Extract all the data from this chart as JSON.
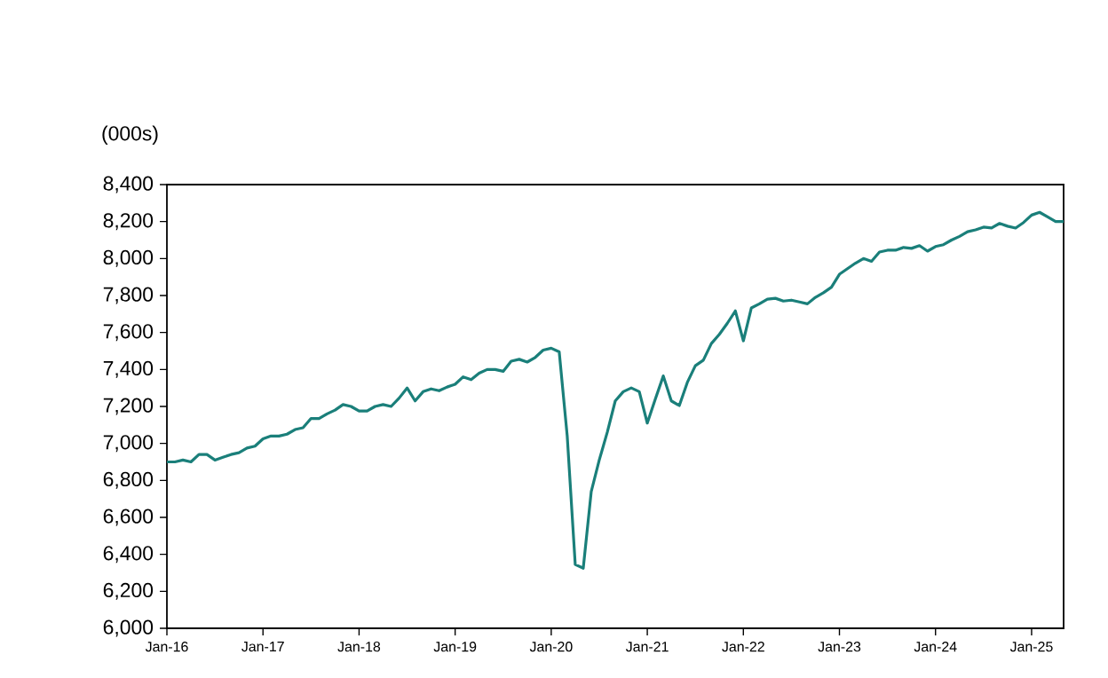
{
  "chart_data": {
    "type": "line",
    "ylabel": "(000s)",
    "x": [
      "2016-01",
      "2016-02",
      "2016-03",
      "2016-04",
      "2016-05",
      "2016-06",
      "2016-07",
      "2016-08",
      "2016-09",
      "2016-10",
      "2016-11",
      "2016-12",
      "2017-01",
      "2017-02",
      "2017-03",
      "2017-04",
      "2017-05",
      "2017-06",
      "2017-07",
      "2017-08",
      "2017-09",
      "2017-10",
      "2017-11",
      "2017-12",
      "2018-01",
      "2018-02",
      "2018-03",
      "2018-04",
      "2018-05",
      "2018-06",
      "2018-07",
      "2018-08",
      "2018-09",
      "2018-10",
      "2018-11",
      "2018-12",
      "2019-01",
      "2019-02",
      "2019-03",
      "2019-04",
      "2019-05",
      "2019-06",
      "2019-07",
      "2019-08",
      "2019-09",
      "2019-10",
      "2019-11",
      "2019-12",
      "2020-01",
      "2020-02",
      "2020-03",
      "2020-04",
      "2020-05",
      "2020-06",
      "2020-07",
      "2020-08",
      "2020-09",
      "2020-10",
      "2020-11",
      "2020-12",
      "2021-01",
      "2021-02",
      "2021-03",
      "2021-04",
      "2021-05",
      "2021-06",
      "2021-07",
      "2021-08",
      "2021-09",
      "2021-10",
      "2021-11",
      "2021-12",
      "2022-01",
      "2022-02",
      "2022-03",
      "2022-04",
      "2022-05",
      "2022-06",
      "2022-07",
      "2022-08",
      "2022-09",
      "2022-10",
      "2022-11",
      "2022-12",
      "2023-01",
      "2023-02",
      "2023-03",
      "2023-04",
      "2023-05",
      "2023-06",
      "2023-07",
      "2023-08",
      "2023-09",
      "2023-10",
      "2023-11",
      "2023-12",
      "2024-01",
      "2024-02",
      "2024-03",
      "2024-04",
      "2024-05",
      "2024-06",
      "2024-07",
      "2024-08",
      "2024-09",
      "2024-10",
      "2024-11",
      "2024-12",
      "2025-01",
      "2025-02",
      "2025-03",
      "2025-04",
      "2025-05"
    ],
    "series": [
      {
        "color": "#1a7f7a",
        "values": [
          6900,
          6900,
          6910,
          6900,
          6940,
          6940,
          6910,
          6925,
          6940,
          6950,
          6975,
          6985,
          7025,
          7040,
          7040,
          7050,
          7075,
          7085,
          7135,
          7135,
          7160,
          7180,
          7210,
          7200,
          7175,
          7175,
          7200,
          7210,
          7200,
          7245,
          7300,
          7230,
          7280,
          7295,
          7285,
          7305,
          7320,
          7360,
          7345,
          7380,
          7400,
          7400,
          7390,
          7445,
          7455,
          7440,
          7465,
          7505,
          7515,
          7495,
          7040,
          6345,
          6325,
          6740,
          6910,
          7060,
          7230,
          7280,
          7300,
          7280,
          7110,
          7240,
          7365,
          7230,
          7205,
          7330,
          7420,
          7450,
          7540,
          7590,
          7650,
          7717,
          7555,
          7733,
          7755,
          7780,
          7785,
          7770,
          7775,
          7765,
          7755,
          7790,
          7815,
          7845,
          7915,
          7945,
          7975,
          8000,
          7985,
          8035,
          8045,
          8045,
          8060,
          8055,
          8070,
          8040,
          8065,
          8075,
          8100,
          8120,
          8145,
          8155,
          8170,
          8165,
          8190,
          8175,
          8165,
          8195,
          8235,
          8250,
          8225,
          8200,
          8200
        ]
      }
    ],
    "xlim": [
      "2016-01",
      "2025-05"
    ],
    "xticks": [
      {
        "value": "2016-01",
        "label": "Jan-16"
      },
      {
        "value": "2017-01",
        "label": "Jan-17"
      },
      {
        "value": "2018-01",
        "label": "Jan-18"
      },
      {
        "value": "2019-01",
        "label": "Jan-19"
      },
      {
        "value": "2020-01",
        "label": "Jan-20"
      },
      {
        "value": "2021-01",
        "label": "Jan-21"
      },
      {
        "value": "2022-01",
        "label": "Jan-22"
      },
      {
        "value": "2023-01",
        "label": "Jan-23"
      },
      {
        "value": "2024-01",
        "label": "Jan-24"
      },
      {
        "value": "2025-01",
        "label": "Jan-25"
      }
    ],
    "ylim": [
      6000,
      8400
    ],
    "yticks": [
      {
        "value": 6000,
        "label": "6,000"
      },
      {
        "value": 6200,
        "label": "6,200"
      },
      {
        "value": 6400,
        "label": "6,400"
      },
      {
        "value": 6600,
        "label": "6,600"
      },
      {
        "value": 6800,
        "label": "6,800"
      },
      {
        "value": 7000,
        "label": "7,000"
      },
      {
        "value": 7200,
        "label": "7,200"
      },
      {
        "value": 7400,
        "label": "7,400"
      },
      {
        "value": 7600,
        "label": "7,600"
      },
      {
        "value": 7800,
        "label": "7,800"
      },
      {
        "value": 8000,
        "label": "8,000"
      },
      {
        "value": 8200,
        "label": "8,200"
      },
      {
        "value": 8400,
        "label": "8,400"
      }
    ],
    "grid": false,
    "legend": false,
    "marker": "none",
    "line_style": "solid"
  }
}
